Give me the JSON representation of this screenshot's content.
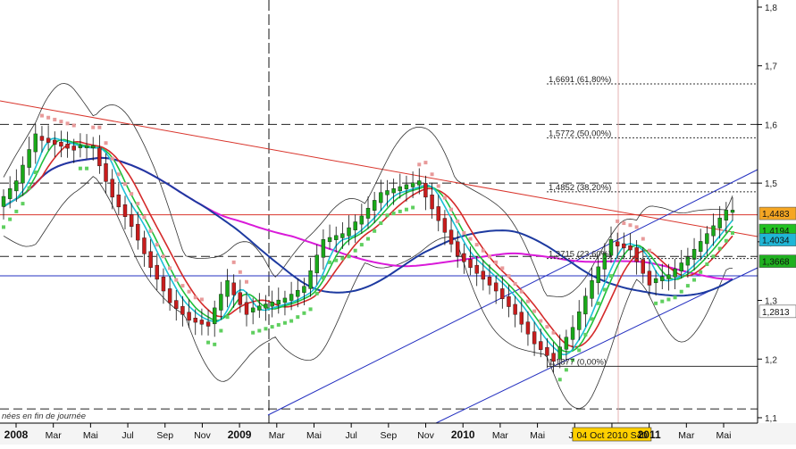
{
  "chart_data": {
    "type": "candlestick",
    "instrument_note": "nées en fin de journée",
    "x_tick_labels": [
      {
        "label": "2008",
        "major": true
      },
      {
        "label": "Mar",
        "major": false
      },
      {
        "label": "Mai",
        "major": false
      },
      {
        "label": "Jul",
        "major": false
      },
      {
        "label": "Sep",
        "major": false
      },
      {
        "label": "Nov",
        "major": false
      },
      {
        "label": "2009",
        "major": true
      },
      {
        "label": "Mar",
        "major": false
      },
      {
        "label": "Mai",
        "major": false
      },
      {
        "label": "Jul",
        "major": false
      },
      {
        "label": "Sep",
        "major": false
      },
      {
        "label": "Nov",
        "major": false
      },
      {
        "label": "2010",
        "major": true
      },
      {
        "label": "Mar",
        "major": false
      },
      {
        "label": "Mai",
        "major": false
      },
      {
        "label": "Jul",
        "major": false
      },
      {
        "label": "04 Oct 2010 S40",
        "major": false,
        "highlight": true
      },
      {
        "label": "2011",
        "major": true
      },
      {
        "label": "Mar",
        "major": false
      },
      {
        "label": "Mai",
        "major": false
      }
    ],
    "y_axis": {
      "ticks": [
        "1,8",
        "1,7",
        "1,6",
        "1,5",
        "1,4",
        "1,3",
        "1,2",
        "1,1"
      ],
      "ylim": [
        1.09,
        1.82
      ]
    },
    "fibonacci_levels": [
      {
        "value": 1.6691,
        "label": "1,6691 (61,80%)"
      },
      {
        "value": 1.5772,
        "label": "1,5772 (50,00%)"
      },
      {
        "value": 1.4852,
        "label": "1,4852 (38,20%)"
      },
      {
        "value": 1.3715,
        "label": "1,3715 (23,60%)"
      },
      {
        "value": 1.1877,
        "label": "1,1877 (0,00%)"
      }
    ],
    "price_badges": [
      {
        "value": 1.4483,
        "label": "1,4483",
        "color": "#f5a623"
      },
      {
        "value": 1.4194,
        "label": "1,4194",
        "color": "#21c121"
      },
      {
        "value": 1.4034,
        "label": "1,4034",
        "color": "#1fb6d6"
      },
      {
        "value": 1.3668,
        "label": "1,3668",
        "color": "#1fb01f"
      },
      {
        "value": 1.2813,
        "label": "1,2813",
        "color": "#ffffff"
      }
    ],
    "series_prices": [
      1.46,
      1.5,
      1.58,
      1.57,
      1.56,
      1.56,
      1.48,
      1.43,
      1.36,
      1.3,
      1.27,
      1.26,
      1.33,
      1.28,
      1.29,
      1.3,
      1.32,
      1.4,
      1.41,
      1.44,
      1.48,
      1.49,
      1.5,
      1.44,
      1.38,
      1.35,
      1.32,
      1.28,
      1.23,
      1.2,
      1.25,
      1.33,
      1.4,
      1.39,
      1.33,
      1.34,
      1.37,
      1.41,
      1.45
    ],
    "colors": {
      "up_candle": "#19a819",
      "down_candle": "#c81d1d",
      "resistance_line": "#d9342b",
      "horizontal_line": "#d9342b",
      "channel_line": "#2430c0",
      "ma_blue": "#1d3aa0",
      "ma_magenta": "#d91ad9",
      "ma_red": "#d42a2a",
      "ma_green": "#1fbf3a",
      "ma_cyan": "#1bc0d6",
      "bollinger": "#333333",
      "parabolic_sar_up": "#5fcf5f",
      "parabolic_sar_down": "#e89a9a",
      "highlight": "#e6b0b0",
      "badge_highlight": "#ffd000"
    }
  }
}
